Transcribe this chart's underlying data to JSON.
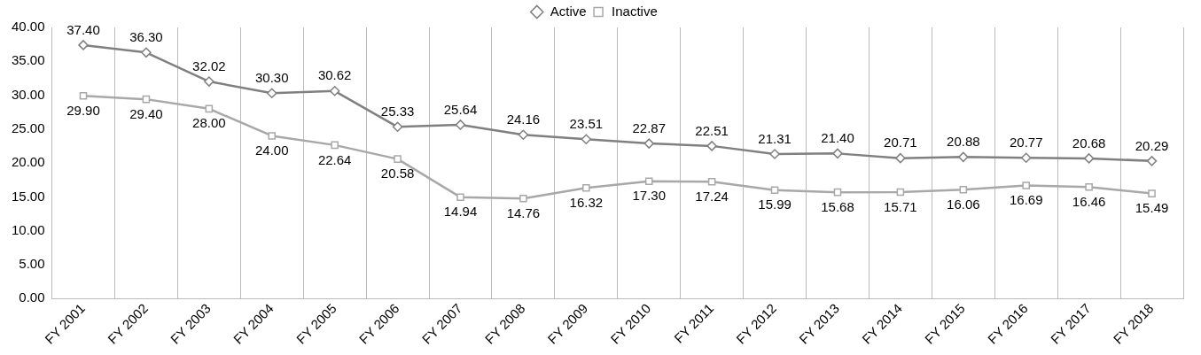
{
  "chart_data": {
    "type": "line",
    "categories": [
      "FY 2001",
      "FY 2002",
      "FY 2003",
      "FY 2004",
      "FY 2005",
      "FY 2006",
      "FY 2007",
      "FY 2008",
      "FY 2009",
      "FY 2010",
      "FY 2011",
      "FY 2012",
      "FY 2013",
      "FY 2014",
      "FY 2015",
      "FY 2016",
      "FY 2017",
      "FY 2018"
    ],
    "series": [
      {
        "name": "Active",
        "color": "#808080",
        "marker": "diamond",
        "values": [
          37.4,
          36.3,
          32.02,
          30.3,
          30.62,
          25.33,
          25.64,
          24.16,
          23.51,
          22.87,
          22.51,
          21.31,
          21.4,
          20.71,
          20.88,
          20.77,
          20.68,
          20.29
        ],
        "value_labels": [
          "37.40",
          "36.30",
          "32.02",
          "30.30",
          "30.62",
          "25.33",
          "25.64",
          "24.16",
          "23.51",
          "22.87",
          "22.51",
          "21.31",
          "21.40",
          "20.71",
          "20.88",
          "20.77",
          "20.68",
          "20.29"
        ]
      },
      {
        "name": "Inactive",
        "color": "#a8a8a8",
        "marker": "square",
        "values": [
          29.9,
          29.4,
          28.0,
          24.0,
          22.64,
          20.58,
          14.94,
          14.76,
          16.32,
          17.3,
          17.24,
          15.99,
          15.68,
          15.71,
          16.06,
          16.69,
          16.46,
          15.49
        ],
        "value_labels": [
          "29.90",
          "29.40",
          "28.00",
          "24.00",
          "22.64",
          "20.58",
          "14.94",
          "14.76",
          "16.32",
          "17.30",
          "17.24",
          "15.99",
          "15.68",
          "15.71",
          "16.06",
          "16.69",
          "16.46",
          "15.49"
        ]
      }
    ],
    "ylim": [
      0,
      40
    ],
    "yticks": [
      {
        "value": 0,
        "label": "0.00"
      },
      {
        "value": 5,
        "label": "5.00"
      },
      {
        "value": 10,
        "label": "10.00"
      },
      {
        "value": 15,
        "label": "15.00"
      },
      {
        "value": 20,
        "label": "20.00"
      },
      {
        "value": 25,
        "label": "25.00"
      },
      {
        "value": 30,
        "label": "30.00"
      },
      {
        "value": 35,
        "label": "35.00"
      },
      {
        "value": 40,
        "label": "40.00"
      }
    ],
    "grid": "x",
    "legend": "top",
    "line_style": "solid"
  }
}
